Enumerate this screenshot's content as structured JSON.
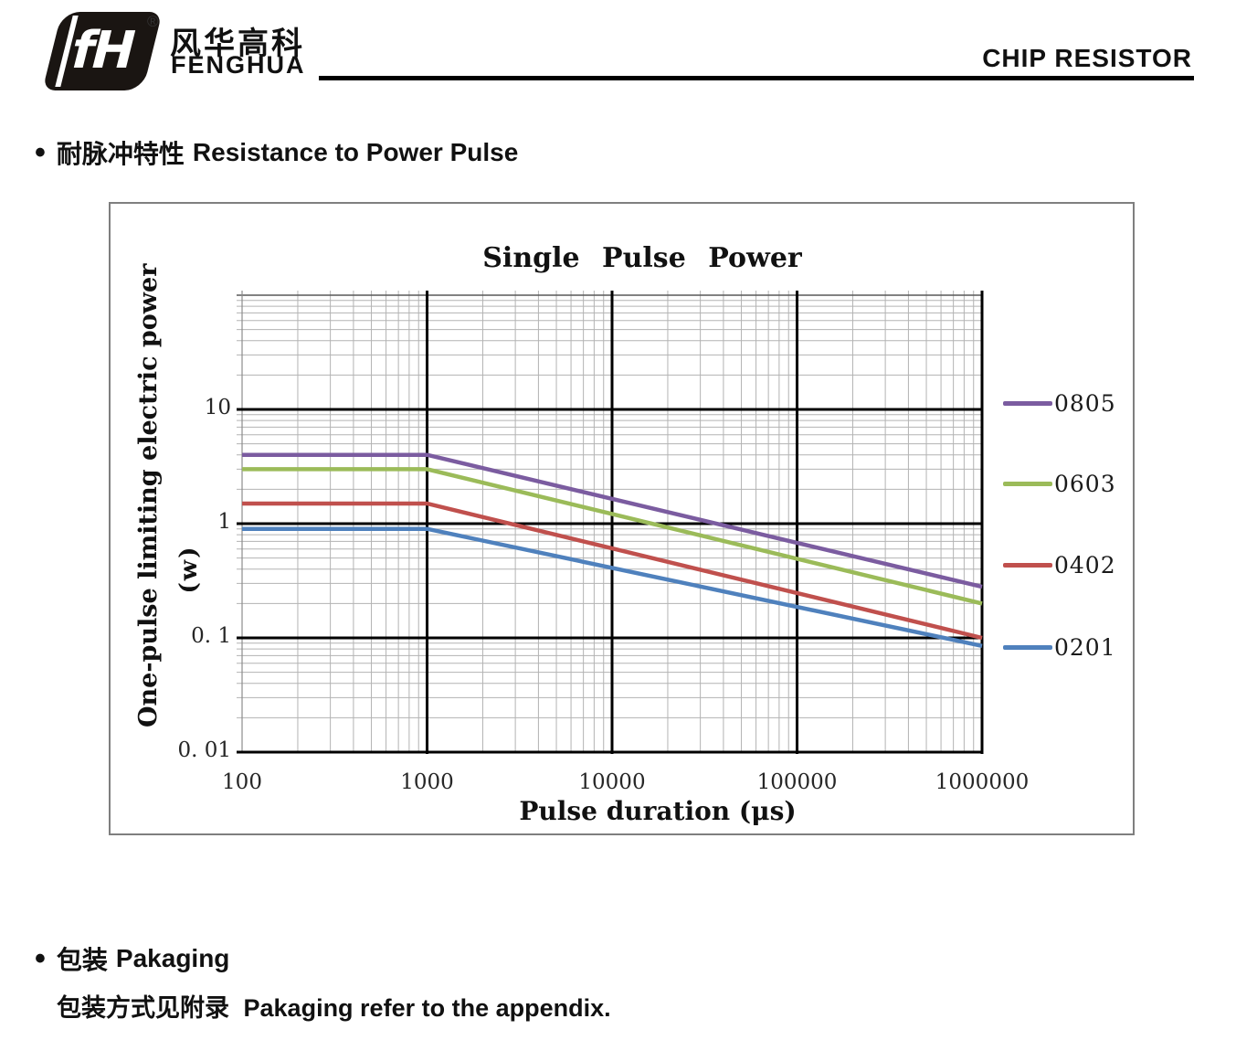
{
  "header": {
    "logo": {
      "mark_text": "fH",
      "reg_mark": "®",
      "cn": "风华高科",
      "en": "FENGHUA"
    },
    "doc_title": "CHIP RESISTOR"
  },
  "sections": {
    "pulse": {
      "bullet": "•",
      "cn": "耐脉冲特性",
      "en": "Resistance to Power Pulse"
    },
    "packaging": {
      "bullet": "•",
      "cn": "包装",
      "en": "Pakaging",
      "note_cn": "包装方式见附录",
      "note_en": "Pakaging refer to the appendix."
    }
  },
  "chart_data": {
    "type": "line",
    "title": "Single Pulse Power",
    "xlabel": "Pulse duration (μs)",
    "ylabel": "One-pulse limiting electric power",
    "ylabel_unit": "(w)",
    "x_scale": "log",
    "y_scale": "log",
    "xlim": [
      100,
      1000000
    ],
    "ylim": [
      0.01,
      100
    ],
    "x_ticks": [
      100,
      1000,
      10000,
      100000,
      1000000
    ],
    "x_tick_labels": [
      "100",
      "1000",
      "10000",
      "100000",
      "1000000"
    ],
    "y_ticks": [
      10,
      1,
      0.1,
      0.01
    ],
    "y_tick_labels": [
      "10",
      "1",
      "0. 1",
      "0. 01"
    ],
    "grid": {
      "minor_color": "#b3b3b3",
      "major_color": "#000000",
      "border_color": "#7f7f7f"
    },
    "legend_position": "right",
    "legend": [
      "0805",
      "0603",
      "0402",
      "0201"
    ],
    "series": [
      {
        "name": "0805",
        "color": "#7B5CA0",
        "points": [
          [
            100,
            4
          ],
          [
            1000,
            4
          ],
          [
            1000000,
            0.28
          ]
        ]
      },
      {
        "name": "0603",
        "color": "#9BBB59",
        "points": [
          [
            100,
            3
          ],
          [
            1000,
            3
          ],
          [
            1000000,
            0.2
          ]
        ]
      },
      {
        "name": "0402",
        "color": "#C0504D",
        "points": [
          [
            100,
            1.5
          ],
          [
            1000,
            1.5
          ],
          [
            1000000,
            0.1
          ]
        ]
      },
      {
        "name": "0201",
        "color": "#4F81BD",
        "points": [
          [
            100,
            0.9
          ],
          [
            1000,
            0.9
          ],
          [
            1000000,
            0.085
          ]
        ]
      }
    ]
  }
}
